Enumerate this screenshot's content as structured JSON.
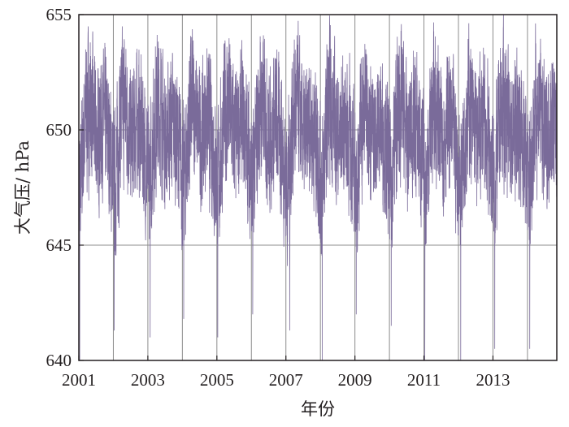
{
  "chart_data": {
    "type": "line",
    "title": "",
    "xlabel": "年份",
    "ylabel": "大气压/ hPa",
    "xlim": [
      2001,
      2014.85
    ],
    "ylim": [
      640,
      655
    ],
    "x_ticks": [
      {
        "value": 2001,
        "label": "2001"
      },
      {
        "value": 2003,
        "label": "2003"
      },
      {
        "value": 2005,
        "label": "2005"
      },
      {
        "value": 2007,
        "label": "2007"
      },
      {
        "value": 2009,
        "label": "2009"
      },
      {
        "value": 2011,
        "label": "2011"
      },
      {
        "value": 2013,
        "label": "2013"
      }
    ],
    "y_ticks": [
      {
        "value": 640,
        "label": "640"
      },
      {
        "value": 645,
        "label": "645"
      },
      {
        "value": 650,
        "label": "650"
      },
      {
        "value": 655,
        "label": "655"
      }
    ],
    "vertical_gridlines_at": [
      2002,
      2003,
      2004,
      2005,
      2006,
      2007,
      2008,
      2009,
      2010,
      2011,
      2012,
      2013,
      2014
    ],
    "horizontal_gridlines_at": [
      645,
      650
    ],
    "series": [
      {
        "color": "#7a6b9a",
        "sampling": "daily",
        "start": "2001-01-01",
        "end": "2014-11-05",
        "seasonal_profile_by_month": [
          {
            "month": 1,
            "typical_min": 643.5,
            "typical_mean": 647.5,
            "typical_max": 651.5
          },
          {
            "month": 2,
            "typical_min": 645.0,
            "typical_mean": 649.0,
            "typical_max": 653.0
          },
          {
            "month": 3,
            "typical_min": 646.0,
            "typical_mean": 650.5,
            "typical_max": 655.0
          },
          {
            "month": 4,
            "typical_min": 646.5,
            "typical_mean": 651.0,
            "typical_max": 655.0
          },
          {
            "month": 5,
            "typical_min": 646.5,
            "typical_mean": 651.0,
            "typical_max": 654.5
          },
          {
            "month": 6,
            "typical_min": 646.0,
            "typical_mean": 650.0,
            "typical_max": 653.5
          },
          {
            "month": 7,
            "typical_min": 645.5,
            "typical_mean": 649.5,
            "typical_max": 653.0
          },
          {
            "month": 8,
            "typical_min": 646.0,
            "typical_mean": 650.0,
            "typical_max": 653.5
          },
          {
            "month": 9,
            "typical_min": 646.5,
            "typical_mean": 650.5,
            "typical_max": 654.0
          },
          {
            "month": 10,
            "typical_min": 646.0,
            "typical_mean": 650.0,
            "typical_max": 654.0
          },
          {
            "month": 11,
            "typical_min": 645.5,
            "typical_mean": 649.5,
            "typical_max": 653.5
          },
          {
            "month": 12,
            "typical_min": 644.5,
            "typical_mean": 648.5,
            "typical_max": 652.5
          }
        ],
        "notable_minima": [
          {
            "date": "2001-01-10",
            "value": 640.0
          },
          {
            "date": "2002-01-10",
            "value": 641.3
          },
          {
            "date": "2003-01-25",
            "value": 641.0
          },
          {
            "date": "2004-01-15",
            "value": 641.8
          },
          {
            "date": "2005-01-10",
            "value": 641.0
          },
          {
            "date": "2006-01-15",
            "value": 642.0
          },
          {
            "date": "2007-02-10",
            "value": 641.3
          },
          {
            "date": "2008-01-20",
            "value": 640.0
          },
          {
            "date": "2009-01-15",
            "value": 642.0
          },
          {
            "date": "2010-01-20",
            "value": 641.5
          },
          {
            "date": "2011-01-10",
            "value": 640.0
          },
          {
            "date": "2012-01-25",
            "value": 640.0
          },
          {
            "date": "2013-01-20",
            "value": 640.5
          },
          {
            "date": "2014-01-25",
            "value": 640.5
          }
        ]
      }
    ]
  }
}
